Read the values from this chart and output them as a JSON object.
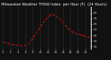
{
  "hours": [
    0,
    1,
    2,
    3,
    4,
    5,
    6,
    7,
    8,
    9,
    10,
    11,
    12,
    13,
    14,
    15,
    16,
    17,
    18,
    19,
    20,
    21,
    22,
    23
  ],
  "values": [
    28,
    26,
    24,
    23,
    22,
    21,
    22,
    25,
    35,
    45,
    55,
    65,
    72,
    78,
    75,
    70,
    62,
    55,
    48,
    44,
    42,
    40,
    38,
    36
  ],
  "line_color": "#ff0000",
  "marker_color": "#111111",
  "marker_edge": "#000000",
  "bg_color": "#111111",
  "plot_bg": "#111111",
  "title": "Milwaukee Weather THSW Index  per Hour (F)  (24 Hours)",
  "title_color": "#ffffff",
  "title_fontsize": 3.8,
  "tick_color": "#cccccc",
  "grid_color": "#555555",
  "ylim": [
    15,
    90
  ],
  "yticks": [
    20,
    30,
    40,
    50,
    60,
    70,
    80
  ],
  "xticks": [
    0,
    2,
    4,
    6,
    8,
    10,
    12,
    14,
    16,
    18,
    20,
    22
  ],
  "vgrid_positions": [
    0,
    2,
    4,
    6,
    8,
    10,
    12,
    14,
    16,
    18,
    20,
    22
  ]
}
